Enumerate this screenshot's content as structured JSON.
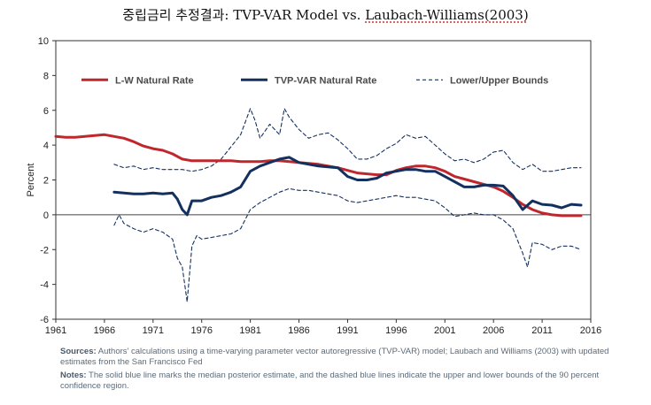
{
  "title": {
    "prefix": "중립금리 추정결과: TVP-VAR Model vs. ",
    "highlight": "Laubach-Williams(2003)"
  },
  "chart_data": {
    "type": "line",
    "xlabel": "",
    "ylabel": "Percent",
    "xlim": [
      1961,
      2016
    ],
    "ylim": [
      -6,
      10
    ],
    "xticks": [
      1961,
      1966,
      1971,
      1976,
      1981,
      1986,
      1991,
      1996,
      2001,
      2006,
      2011,
      2016
    ],
    "yticks": [
      -6,
      -4,
      -2,
      0,
      2,
      4,
      6,
      8,
      10
    ],
    "legend": [
      "L-W Natural Rate",
      "TVP-VAR Natural Rate",
      "Lower/Upper Bounds"
    ],
    "colors": {
      "lw": "#c0272d",
      "tvp": "#14305f",
      "bounds": "#14305f"
    },
    "series": [
      {
        "name": "L-W Natural Rate",
        "x": [
          1961,
          1962,
          1963,
          1964,
          1965,
          1966,
          1967,
          1968,
          1969,
          1970,
          1971,
          1972,
          1973,
          1974,
          1975,
          1976,
          1977,
          1978,
          1979,
          1980,
          1981,
          1982,
          1983,
          1984,
          1985,
          1986,
          1987,
          1988,
          1989,
          1990,
          1991,
          1992,
          1993,
          1994,
          1995,
          1996,
          1997,
          1998,
          1999,
          2000,
          2001,
          2002,
          2003,
          2004,
          2005,
          2006,
          2007,
          2008,
          2009,
          2010,
          2011,
          2012,
          2013,
          2014,
          2015
        ],
        "values": [
          4.5,
          4.45,
          4.45,
          4.5,
          4.55,
          4.6,
          4.5,
          4.4,
          4.2,
          3.95,
          3.8,
          3.7,
          3.5,
          3.2,
          3.1,
          3.1,
          3.1,
          3.1,
          3.1,
          3.05,
          3.05,
          3.05,
          3.1,
          3.1,
          3.05,
          3.0,
          2.95,
          2.9,
          2.8,
          2.7,
          2.55,
          2.4,
          2.35,
          2.3,
          2.3,
          2.55,
          2.7,
          2.8,
          2.8,
          2.7,
          2.5,
          2.2,
          2.05,
          1.9,
          1.75,
          1.6,
          1.35,
          1.0,
          0.6,
          0.3,
          0.1,
          0.0,
          -0.05,
          -0.05,
          -0.05
        ]
      },
      {
        "name": "TVP-VAR Natural Rate",
        "x": [
          1967,
          1968,
          1969,
          1970,
          1971,
          1972,
          1973,
          1973.5,
          1974,
          1974.5,
          1975,
          1976,
          1977,
          1978,
          1979,
          1980,
          1981,
          1982,
          1983,
          1984,
          1985,
          1986,
          1987,
          1988,
          1989,
          1990,
          1991,
          1992,
          1993,
          1994,
          1995,
          1996,
          1997,
          1998,
          1999,
          2000,
          2001,
          2002,
          2003,
          2004,
          2005,
          2006,
          2007,
          2008,
          2009,
          2010,
          2011,
          2012,
          2013,
          2014,
          2015
        ],
        "values": [
          1.3,
          1.25,
          1.2,
          1.2,
          1.25,
          1.2,
          1.25,
          0.9,
          0.3,
          0.0,
          0.8,
          0.8,
          1.0,
          1.1,
          1.3,
          1.6,
          2.5,
          2.8,
          3.0,
          3.2,
          3.3,
          3.0,
          2.9,
          2.8,
          2.75,
          2.7,
          2.2,
          2.0,
          2.0,
          2.1,
          2.4,
          2.5,
          2.6,
          2.6,
          2.5,
          2.5,
          2.2,
          1.9,
          1.6,
          1.6,
          1.7,
          1.7,
          1.65,
          1.1,
          0.3,
          0.8,
          0.6,
          0.55,
          0.4,
          0.6,
          0.55
        ]
      },
      {
        "name": "Upper Bound",
        "x": [
          1967,
          1968,
          1969,
          1970,
          1971,
          1972,
          1973,
          1974,
          1975,
          1976,
          1977,
          1978,
          1979,
          1980,
          1981,
          1981.5,
          1982,
          1983,
          1984,
          1984.5,
          1985,
          1986,
          1987,
          1988,
          1989,
          1990,
          1991,
          1992,
          1993,
          1994,
          1995,
          1996,
          1997,
          1998,
          1999,
          2000,
          2001,
          2002,
          2003,
          2004,
          2005,
          2006,
          2007,
          2008,
          2009,
          2010,
          2011,
          2012,
          2013,
          2014,
          2015
        ],
        "values": [
          2.9,
          2.7,
          2.8,
          2.6,
          2.7,
          2.6,
          2.6,
          2.6,
          2.5,
          2.6,
          2.8,
          3.2,
          3.9,
          4.6,
          6.1,
          5.4,
          4.4,
          5.2,
          4.6,
          6.1,
          5.6,
          4.9,
          4.4,
          4.6,
          4.7,
          4.3,
          3.8,
          3.2,
          3.2,
          3.4,
          3.8,
          4.1,
          4.6,
          4.4,
          4.5,
          4.0,
          3.5,
          3.1,
          3.2,
          3.0,
          3.2,
          3.6,
          3.7,
          3.0,
          2.6,
          2.9,
          2.5,
          2.5,
          2.6,
          2.7,
          2.7
        ]
      },
      {
        "name": "Lower Bound",
        "x": [
          1967,
          1967.5,
          1968,
          1969,
          1970,
          1971,
          1972,
          1973,
          1973.5,
          1974,
          1974.5,
          1975,
          1975.5,
          1976,
          1977,
          1978,
          1979,
          1980,
          1981,
          1982,
          1983,
          1984,
          1985,
          1986,
          1987,
          1988,
          1989,
          1990,
          1991,
          1992,
          1993,
          1994,
          1995,
          1996,
          1997,
          1998,
          1999,
          2000,
          2001,
          2002,
          2003,
          2004,
          2005,
          2006,
          2007,
          2008,
          2009,
          2009.5,
          2010,
          2011,
          2012,
          2013,
          2014,
          2015
        ],
        "values": [
          -0.6,
          0.0,
          -0.5,
          -0.8,
          -1.0,
          -0.8,
          -1.0,
          -1.4,
          -2.5,
          -3.0,
          -5.0,
          -1.8,
          -1.2,
          -1.4,
          -1.3,
          -1.2,
          -1.1,
          -0.8,
          0.3,
          0.7,
          1.0,
          1.3,
          1.5,
          1.4,
          1.4,
          1.3,
          1.2,
          1.1,
          0.8,
          0.7,
          0.8,
          0.9,
          1.0,
          1.1,
          1.0,
          1.0,
          0.9,
          0.8,
          0.4,
          -0.1,
          0.0,
          0.1,
          0.0,
          0.0,
          -0.3,
          -0.8,
          -2.2,
          -3.0,
          -1.6,
          -1.7,
          -2.0,
          -1.8,
          -1.8,
          -2.0
        ]
      }
    ]
  },
  "notes": {
    "sources_label": "Sources:",
    "sources_text": "Authors' calculations using a time-varying parameter vector autoregressive (TVP-VAR) model; Laubach and Williams (2003) with updated estimates from the San Francisco Fed",
    "notes_label": "Notes:",
    "notes_text": "The solid blue line marks the median posterior estimate, and the dashed blue lines indicate the upper and lower bounds of the 90 percent confidence region."
  }
}
